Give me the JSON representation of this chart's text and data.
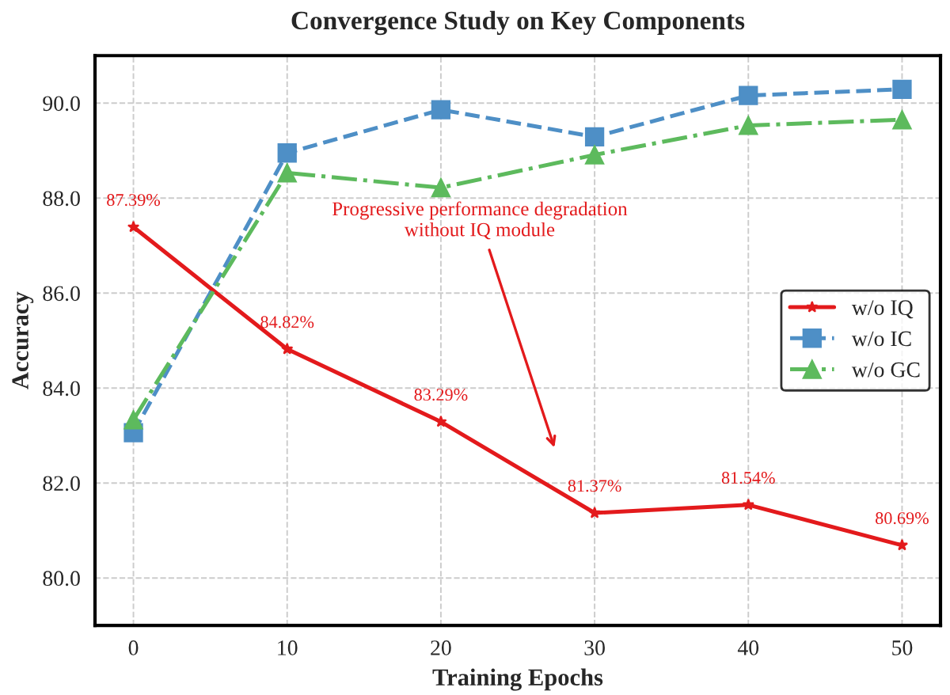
{
  "chart_data": {
    "type": "line",
    "title": "Convergence Study on Key Components",
    "xlabel": "Training Epochs",
    "ylabel": "Accuracy",
    "x": [
      0,
      10,
      20,
      30,
      40,
      50
    ],
    "series": [
      {
        "name": "w/o IQ",
        "color": "#e31a1c",
        "marker": "star",
        "line_style": "solid",
        "values": [
          87.39,
          84.82,
          83.29,
          81.37,
          81.54,
          80.69
        ],
        "value_labels": [
          "87.39%",
          "84.82%",
          "83.29%",
          "81.37%",
          "81.54%",
          "80.69%"
        ]
      },
      {
        "name": "w/o IC",
        "color": "#4e8fc6",
        "marker": "square",
        "line_style": "dashed",
        "values": [
          83.06,
          88.95,
          89.86,
          89.29,
          90.16,
          90.29
        ]
      },
      {
        "name": "w/o GC",
        "color": "#5dba5d",
        "marker": "triangle",
        "line_style": "dashdot",
        "values": [
          83.33,
          88.53,
          88.22,
          88.91,
          89.53,
          89.65
        ]
      }
    ],
    "annotations": [
      "Progressive performance degradation\nwithout IQ module"
    ],
    "xlim": [
      -2.5,
      52.5
    ],
    "xticks": [
      0,
      10,
      20,
      30,
      40,
      50
    ],
    "ylim": [
      79,
      91
    ],
    "yticks": [
      {
        "value": 80,
        "label": "80.0"
      },
      {
        "value": 82,
        "label": "82.0"
      },
      {
        "value": 84,
        "label": "84.0"
      },
      {
        "value": 86,
        "label": "86.0"
      },
      {
        "value": 88,
        "label": "88.0"
      },
      {
        "value": 90,
        "label": "90.0"
      }
    ],
    "grid": true,
    "legend": "center right"
  }
}
